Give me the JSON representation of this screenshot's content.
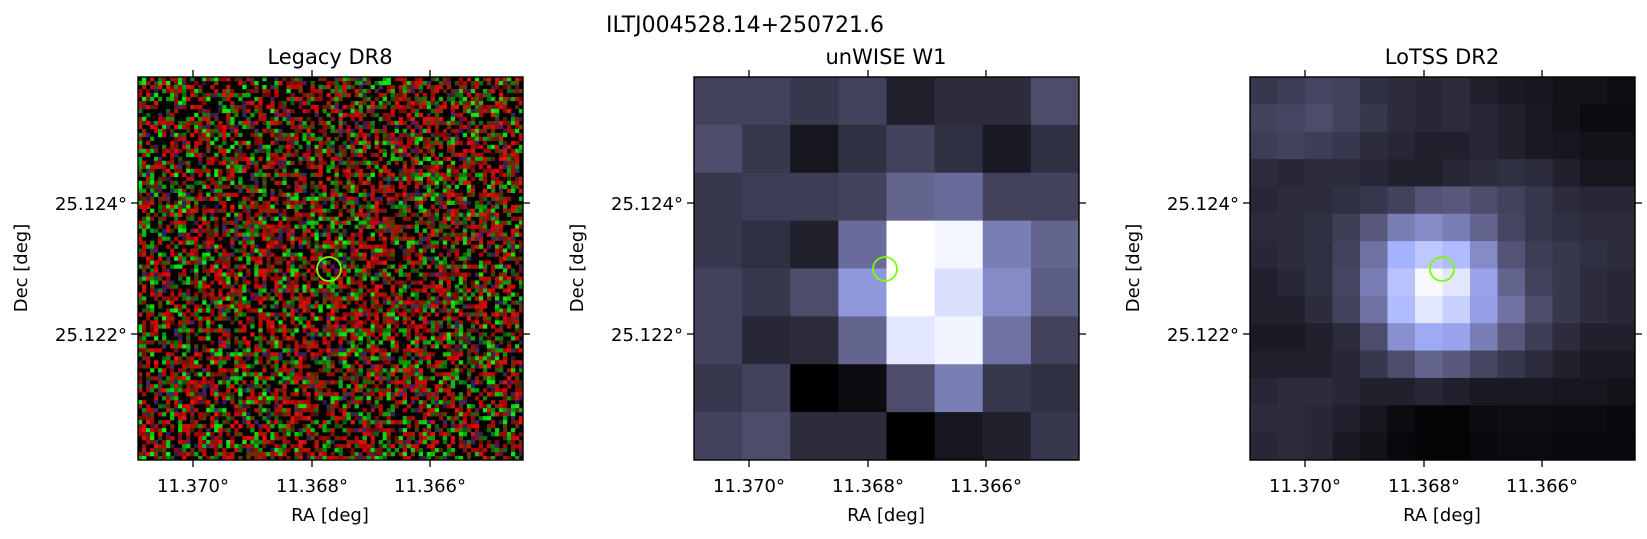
{
  "figure": {
    "title": "ILTJ004528.14+250721.6",
    "marker_color": "#7cfc00",
    "panels": [
      {
        "id": "legacy",
        "title": "Legacy DR8",
        "kind": "noise",
        "xlabel": "RA [deg]",
        "ylabel": "Dec [deg]",
        "xticks": [
          "11.370°",
          "11.368°",
          "11.366°"
        ],
        "yticks": [
          "25.124°",
          "25.122°"
        ]
      },
      {
        "id": "unwise",
        "title": "unWISE W1",
        "kind": "grid",
        "xlabel": "RA [deg]",
        "ylabel": "Dec [deg]",
        "xticks": [
          "11.370°",
          "11.368°",
          "11.366°"
        ],
        "yticks": [
          "25.124°",
          "25.122°"
        ],
        "levels": [
          [
            0.3,
            0.3,
            0.25,
            0.3,
            0.15,
            0.2,
            0.2,
            0.35
          ],
          [
            0.35,
            0.25,
            0.1,
            0.22,
            0.3,
            0.22,
            0.12,
            0.22
          ],
          [
            0.25,
            0.28,
            0.28,
            0.3,
            0.45,
            0.48,
            0.3,
            0.3
          ],
          [
            0.25,
            0.22,
            0.15,
            0.48,
            1.0,
            0.97,
            0.55,
            0.45
          ],
          [
            0.3,
            0.25,
            0.35,
            0.65,
            1.0,
            0.9,
            0.6,
            0.42
          ],
          [
            0.3,
            0.18,
            0.2,
            0.45,
            0.92,
            0.96,
            0.5,
            0.3
          ],
          [
            0.25,
            0.3,
            0.0,
            0.05,
            0.35,
            0.55,
            0.25,
            0.22
          ],
          [
            0.3,
            0.35,
            0.2,
            0.2,
            0.0,
            0.1,
            0.15,
            0.25
          ]
        ]
      },
      {
        "id": "lotss",
        "title": "LoTSS DR2",
        "kind": "grid",
        "xlabel": "RA [deg]",
        "ylabel": "Dec [deg]",
        "xticks": [
          "11.370°",
          "11.368°",
          "11.366°"
        ],
        "yticks": [
          "25.124°",
          "25.122°"
        ],
        "levels": [
          [
            0.25,
            0.28,
            0.32,
            0.3,
            0.22,
            0.2,
            0.18,
            0.2,
            0.15,
            0.12,
            0.1,
            0.08,
            0.08,
            0.06
          ],
          [
            0.3,
            0.32,
            0.35,
            0.3,
            0.25,
            0.2,
            0.18,
            0.2,
            0.18,
            0.15,
            0.12,
            0.08,
            0.05,
            0.05
          ],
          [
            0.28,
            0.3,
            0.28,
            0.25,
            0.2,
            0.18,
            0.15,
            0.15,
            0.18,
            0.15,
            0.12,
            0.1,
            0.08,
            0.08
          ],
          [
            0.2,
            0.18,
            0.2,
            0.2,
            0.18,
            0.15,
            0.15,
            0.18,
            0.2,
            0.22,
            0.2,
            0.15,
            0.1,
            0.1
          ],
          [
            0.18,
            0.2,
            0.2,
            0.22,
            0.25,
            0.3,
            0.38,
            0.4,
            0.35,
            0.3,
            0.25,
            0.2,
            0.18,
            0.18
          ],
          [
            0.2,
            0.2,
            0.22,
            0.28,
            0.4,
            0.55,
            0.6,
            0.55,
            0.45,
            0.32,
            0.25,
            0.22,
            0.2,
            0.2
          ],
          [
            0.18,
            0.2,
            0.22,
            0.3,
            0.5,
            0.75,
            0.82,
            0.78,
            0.6,
            0.38,
            0.28,
            0.25,
            0.22,
            0.2
          ],
          [
            0.15,
            0.18,
            0.22,
            0.32,
            0.55,
            0.8,
            0.98,
            0.92,
            0.7,
            0.45,
            0.3,
            0.25,
            0.2,
            0.18
          ],
          [
            0.15,
            0.15,
            0.2,
            0.3,
            0.5,
            0.78,
            0.92,
            0.85,
            0.68,
            0.5,
            0.35,
            0.25,
            0.2,
            0.18
          ],
          [
            0.12,
            0.12,
            0.15,
            0.2,
            0.35,
            0.62,
            0.72,
            0.7,
            0.55,
            0.4,
            0.28,
            0.2,
            0.15,
            0.15
          ],
          [
            0.15,
            0.15,
            0.15,
            0.18,
            0.25,
            0.35,
            0.45,
            0.4,
            0.32,
            0.25,
            0.2,
            0.15,
            0.12,
            0.12
          ],
          [
            0.18,
            0.2,
            0.2,
            0.18,
            0.15,
            0.15,
            0.18,
            0.15,
            0.12,
            0.12,
            0.12,
            0.1,
            0.1,
            0.08
          ],
          [
            0.2,
            0.2,
            0.18,
            0.15,
            0.1,
            0.05,
            0.02,
            0.02,
            0.05,
            0.06,
            0.06,
            0.05,
            0.05,
            0.04
          ],
          [
            0.18,
            0.2,
            0.18,
            0.12,
            0.08,
            0.04,
            0.02,
            0.02,
            0.04,
            0.05,
            0.05,
            0.04,
            0.04,
            0.04
          ]
        ]
      }
    ]
  }
}
